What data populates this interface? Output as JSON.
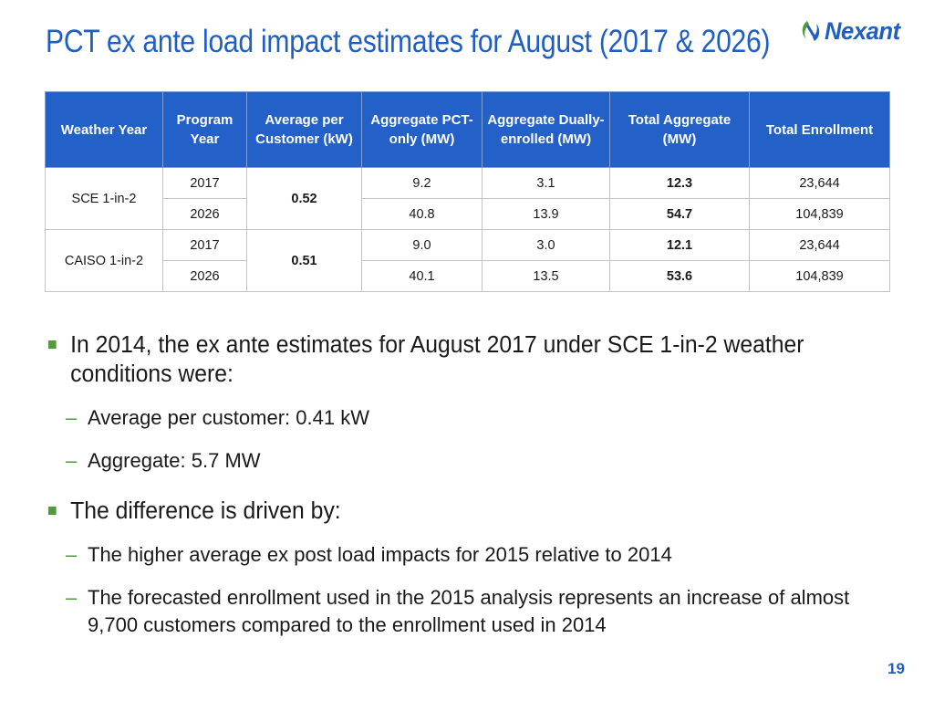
{
  "slide": {
    "title": "PCT ex ante load impact estimates for August (2017 & 2026)",
    "page_number": "19",
    "brand_color": "#1f5fc4",
    "accent_color": "#4f9c3a"
  },
  "logo": {
    "text": "Nexant",
    "icon": "nexant-swirl-icon"
  },
  "table": {
    "headers": [
      "Weather Year",
      "Program Year",
      "Average per Customer (kW)",
      "Aggregate PCT-only (MW)",
      "Aggregate Dually-enrolled (MW)",
      "Total Aggregate (MW)",
      "Total Enrollment"
    ],
    "groups": [
      {
        "weather_year": "SCE 1-in-2",
        "avg_per_customer": "0.52",
        "rows": [
          {
            "program_year": "2017",
            "pct_only": "9.2",
            "dually": "3.1",
            "total": "12.3",
            "enrollment": "23,644"
          },
          {
            "program_year": "2026",
            "pct_only": "40.8",
            "dually": "13.9",
            "total": "54.7",
            "enrollment": "104,839"
          }
        ]
      },
      {
        "weather_year": "CAISO 1-in-2",
        "avg_per_customer": "0.51",
        "rows": [
          {
            "program_year": "2017",
            "pct_only": "9.0",
            "dually": "3.0",
            "total": "12.1",
            "enrollment": "23,644"
          },
          {
            "program_year": "2026",
            "pct_only": "40.1",
            "dually": "13.5",
            "total": "53.6",
            "enrollment": "104,839"
          }
        ]
      }
    ]
  },
  "bullets": [
    {
      "text": "In 2014, the ex ante estimates for August 2017 under SCE 1-in-2 weather conditions were:",
      "sub": [
        "Average per customer: 0.41 kW",
        "Aggregate: 5.7 MW"
      ]
    },
    {
      "text": "The difference is driven by:",
      "sub": [
        "The higher average ex post load impacts for 2015 relative to 2014",
        "The forecasted enrollment used in the 2015 analysis represents an increase of almost 9,700 customers compared to the enrollment used in 2014"
      ]
    }
  ]
}
